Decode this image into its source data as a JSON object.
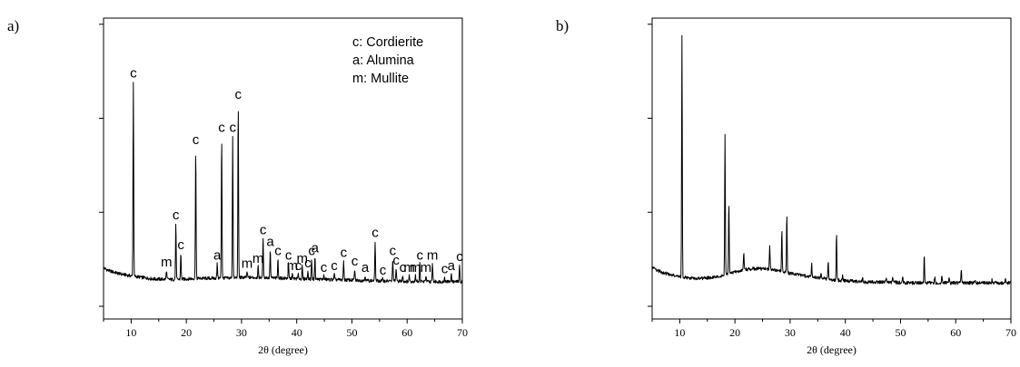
{
  "chart_data": [
    {
      "panel_label": "a)",
      "type": "line",
      "xlabel": "2θ (degree)",
      "ylabel": "",
      "xlim": [
        5,
        70
      ],
      "x_ticks": [
        10,
        20,
        30,
        40,
        50,
        60,
        70
      ],
      "y_ticks_labeled": false,
      "ylim": [
        0,
        100
      ],
      "baseline": {
        "x": [
          5,
          6,
          8,
          10,
          12,
          14,
          16,
          18,
          20,
          22,
          24,
          26,
          28,
          30,
          32,
          34,
          36,
          38,
          40,
          42,
          44,
          46,
          48,
          50,
          52,
          54,
          56,
          58,
          60,
          62,
          64,
          66,
          68,
          70
        ],
        "y": [
          17,
          16,
          15,
          14.3,
          13.8,
          13.3,
          13.2,
          13.1,
          13.3,
          13.5,
          13.5,
          13.6,
          13.6,
          13.8,
          13.8,
          13.8,
          13.6,
          13.5,
          13.4,
          13.3,
          13.2,
          13.1,
          13.0,
          12.9,
          12.8,
          12.7,
          12.6,
          12.6,
          12.5,
          12.5,
          12.4,
          12.4,
          12.4,
          12.4
        ]
      },
      "peaks": [
        {
          "x": 10.4,
          "y": 79,
          "label": "c"
        },
        {
          "x": 16.4,
          "y": 16.2,
          "label": "m"
        },
        {
          "x": 18.1,
          "y": 32,
          "label": "c"
        },
        {
          "x": 19.0,
          "y": 22,
          "label": "c"
        },
        {
          "x": 21.7,
          "y": 57,
          "label": "c"
        },
        {
          "x": 25.6,
          "y": 18.5,
          "label": "a"
        },
        {
          "x": 26.4,
          "y": 61,
          "label": "c"
        },
        {
          "x": 28.4,
          "y": 61,
          "label": "c"
        },
        {
          "x": 29.4,
          "y": 72,
          "label": "c"
        },
        {
          "x": 31.0,
          "y": 15.8,
          "label": "m"
        },
        {
          "x": 33.0,
          "y": 17.5,
          "label": "m"
        },
        {
          "x": 33.9,
          "y": 27,
          "label": "c"
        },
        {
          "x": 35.2,
          "y": 23,
          "label": "a"
        },
        {
          "x": 36.6,
          "y": 20,
          "label": "c"
        },
        {
          "x": 38.5,
          "y": 18.5,
          "label": "c"
        },
        {
          "x": 39.2,
          "y": 15,
          "label": "m"
        },
        {
          "x": 40.3,
          "y": 15,
          "label": "c"
        },
        {
          "x": 41.0,
          "y": 17.5,
          "label": "m"
        },
        {
          "x": 42.0,
          "y": 16,
          "label": "c"
        },
        {
          "x": 42.7,
          "y": 20,
          "label": "c"
        },
        {
          "x": 43.3,
          "y": 21,
          "label": "a"
        },
        {
          "x": 44.9,
          "y": 14.5,
          "label": "c"
        },
        {
          "x": 46.8,
          "y": 15,
          "label": "c"
        },
        {
          "x": 48.5,
          "y": 19.5,
          "label": "c"
        },
        {
          "x": 50.5,
          "y": 16.5,
          "label": "c"
        },
        {
          "x": 52.4,
          "y": 14.5,
          "label": "a"
        },
        {
          "x": 54.2,
          "y": 26,
          "label": "c"
        },
        {
          "x": 55.6,
          "y": 13.5,
          "label": "c"
        },
        {
          "x": 57.4,
          "y": 20,
          "label": "c"
        },
        {
          "x": 58.0,
          "y": 16.8,
          "label": "c"
        },
        {
          "x": 59.2,
          "y": 14.5,
          "label": "c"
        },
        {
          "x": 60.4,
          "y": 14.5,
          "label": "m"
        },
        {
          "x": 61.5,
          "y": 14.5,
          "label": "m"
        },
        {
          "x": 62.3,
          "y": 18.5,
          "label": "c"
        },
        {
          "x": 63.4,
          "y": 14.5,
          "label": "m"
        },
        {
          "x": 64.6,
          "y": 18.5,
          "label": "m"
        },
        {
          "x": 66.8,
          "y": 14,
          "label": "c"
        },
        {
          "x": 68.0,
          "y": 15,
          "label": "a"
        },
        {
          "x": 69.5,
          "y": 18,
          "label": "c"
        }
      ],
      "legend": [
        "c: Cordierite",
        "a: Alumina",
        "m: Mullite"
      ],
      "legend_position": "top-right"
    },
    {
      "panel_label": "b)",
      "type": "line",
      "xlabel": "2θ (degree)",
      "ylabel": "",
      "xlim": [
        5,
        70
      ],
      "x_ticks": [
        10,
        20,
        30,
        40,
        50,
        60,
        70
      ],
      "y_ticks_labeled": false,
      "ylim": [
        0,
        100
      ],
      "baseline": {
        "x": [
          5,
          6,
          8,
          10,
          12,
          14,
          16,
          18,
          20,
          22,
          24,
          26,
          28,
          30,
          32,
          34,
          36,
          38,
          40,
          42,
          44,
          46,
          48,
          50,
          52,
          54,
          56,
          58,
          60,
          62,
          64,
          66,
          68,
          70
        ],
        "y": [
          17,
          16,
          14.8,
          14,
          13.5,
          13.5,
          13.8,
          14.5,
          15.6,
          16.5,
          16.8,
          16.6,
          16,
          15.2,
          14.5,
          13.9,
          13.5,
          13,
          12.7,
          12.5,
          12.3,
          12.2,
          12.2,
          12.1,
          12,
          12,
          12,
          12,
          12,
          12,
          12,
          12,
          12,
          12
        ]
      },
      "peaks": [
        {
          "x": 10.4,
          "y": 94
        },
        {
          "x": 18.2,
          "y": 61
        },
        {
          "x": 18.9,
          "y": 39
        },
        {
          "x": 21.6,
          "y": 22.5
        },
        {
          "x": 26.3,
          "y": 24
        },
        {
          "x": 28.5,
          "y": 29.5
        },
        {
          "x": 29.4,
          "y": 34.5
        },
        {
          "x": 33.9,
          "y": 18.5
        },
        {
          "x": 35.6,
          "y": 15
        },
        {
          "x": 36.9,
          "y": 19
        },
        {
          "x": 38.4,
          "y": 28.5
        },
        {
          "x": 39.5,
          "y": 15
        },
        {
          "x": 43.1,
          "y": 13.8
        },
        {
          "x": 47.4,
          "y": 13.5
        },
        {
          "x": 48.6,
          "y": 14
        },
        {
          "x": 50.4,
          "y": 14
        },
        {
          "x": 54.3,
          "y": 21.5
        },
        {
          "x": 56.2,
          "y": 13.8
        },
        {
          "x": 57.5,
          "y": 14.5
        },
        {
          "x": 58.8,
          "y": 14.2
        },
        {
          "x": 61.0,
          "y": 16.5
        },
        {
          "x": 63.5,
          "y": 13.2
        },
        {
          "x": 66.6,
          "y": 13.2
        },
        {
          "x": 69.0,
          "y": 13.2
        }
      ],
      "legend": [],
      "legend_position": ""
    }
  ]
}
